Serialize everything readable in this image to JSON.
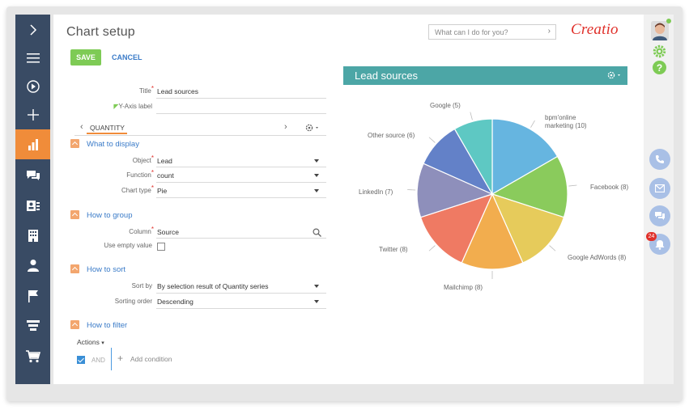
{
  "page": {
    "title": "Chart setup"
  },
  "toolbar": {
    "save_label": "SAVE",
    "cancel_label": "CANCEL"
  },
  "search": {
    "placeholder": "What can I do for you?"
  },
  "brand": {
    "logo_text": "Creatio"
  },
  "form": {
    "title_label": "Title",
    "title_value": "Lead sources",
    "y_axis_label": "Y-Axis label",
    "y_axis_value": "",
    "series_tab": "QUANTITY",
    "display_section": "What to display",
    "object_label": "Object",
    "object_value": "Lead",
    "function_label": "Function",
    "function_value": "count",
    "chart_type_label": "Chart type",
    "chart_type_value": "Pie",
    "group_section": "How to group",
    "column_label": "Column",
    "column_value": "Source",
    "use_empty_label": "Use empty value",
    "sort_section": "How to sort",
    "sort_by_label": "Sort by",
    "sort_by_value": "By selection result of Quantity series",
    "sorting_order_label": "Sorting order",
    "sorting_order_value": "Descending",
    "filter_section": "How to filter",
    "actions_label": "Actions",
    "and_label": "AND",
    "add_condition_label": "Add condition"
  },
  "notifications": {
    "count": "24"
  },
  "colors": {
    "sidebar": "#394b64",
    "active": "#f08c3a",
    "accent": "#3a7bc8",
    "save": "#7ecb55",
    "chart_header": "#4ca6a6"
  },
  "chart_data": {
    "type": "pie",
    "title": "Lead sources",
    "categories": [
      "bpm'online marketing",
      "Facebook",
      "Google AdWords",
      "Mailchimp",
      "Twitter",
      "LinkedIn",
      "Other source",
      "Google"
    ],
    "values": [
      10,
      8,
      8,
      8,
      8,
      7,
      6,
      5
    ],
    "labels": [
      "bpm'online marketing (10)",
      "Facebook (8)",
      "Google AdWords (8)",
      "Mailchimp (8)",
      "Twitter (8)",
      "LinkedIn (7)",
      "Other source (6)",
      "Google (5)"
    ],
    "colors": [
      "#66b5e0",
      "#8acb5c",
      "#e6cb5b",
      "#f2ad4e",
      "#ef7a63",
      "#8e8fbb",
      "#6381c8",
      "#5ec8c3"
    ]
  }
}
